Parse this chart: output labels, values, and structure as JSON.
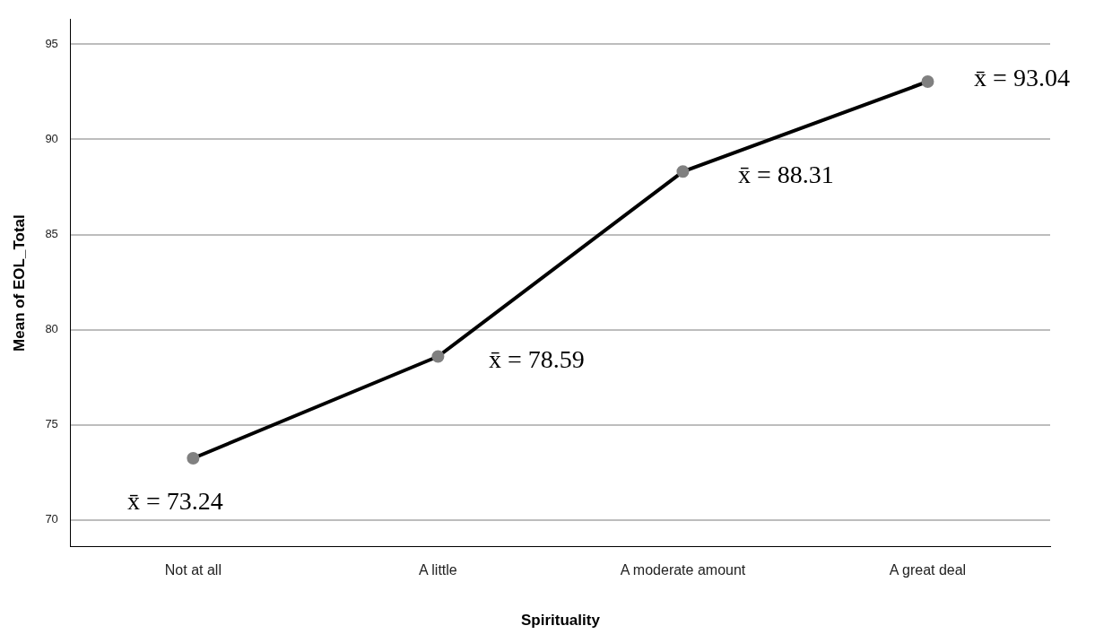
{
  "chart_data": {
    "type": "line",
    "xlabel": "Spirituality",
    "ylabel": "Mean of EOL_Total",
    "categories": [
      "Not at all",
      "A little",
      "A moderate amount",
      "A great deal"
    ],
    "series": [
      {
        "color": "#000000",
        "values": [
          73.24,
          78.59,
          88.31,
          93.04
        ]
      }
    ],
    "marker": "circle",
    "line_style": "solid",
    "grid": "y",
    "legend": false,
    "ylim": [
      68.6,
      96.3
    ],
    "yticks": [
      70,
      75,
      80,
      85,
      90,
      95
    ],
    "annotations": [
      {
        "text": "x̄ = 73.24",
        "x": "Not at all",
        "y": 73.24
      },
      {
        "text": "x̄ = 78.59",
        "x": "A little",
        "y": 78.59
      },
      {
        "text": "x̄ = 88.31",
        "x": "A moderate amount",
        "y": 88.31
      },
      {
        "text": "x̄ = 93.04",
        "x": "A great deal",
        "y": 93.04
      }
    ]
  }
}
